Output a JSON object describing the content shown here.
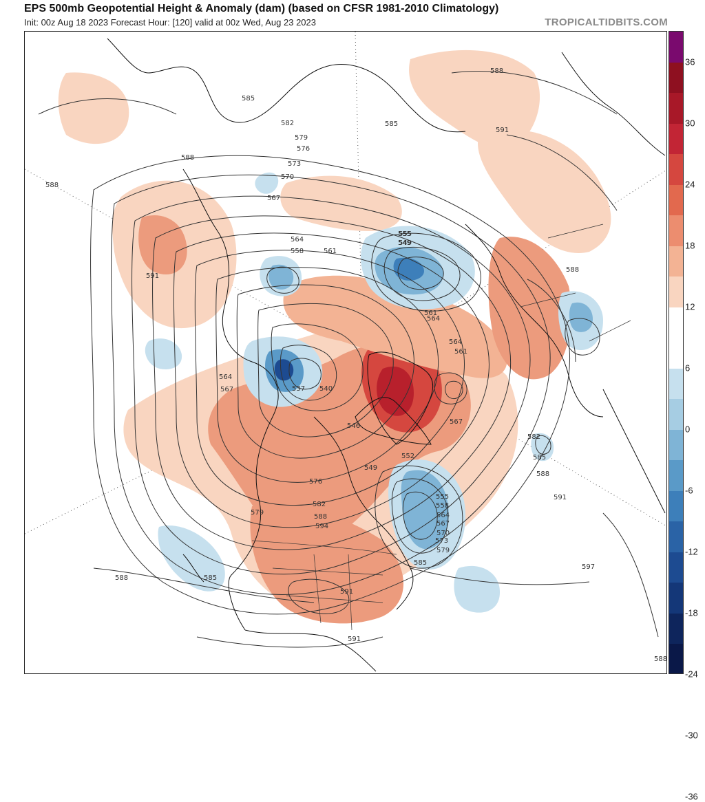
{
  "header": {
    "title": "EPS 500mb Geopotential Height & Anomaly (dam) (based on CFSR 1981-2010 Climatology)",
    "subtitle": "Init: 00z Aug 18 2023   Forecast Hour: [120]   valid at 00z Wed, Aug 23 2023",
    "brand": "TROPICALTIDBITS.COM"
  },
  "colorbar": {
    "ticks": [
      "36",
      "30",
      "24",
      "18",
      "12",
      "6",
      "0",
      "-6",
      "-12",
      "-18",
      "-24",
      "-30",
      "-36"
    ],
    "colors": [
      "#7a0a6e",
      "#8e1020",
      "#a81828",
      "#c22535",
      "#d5473f",
      "#e2694e",
      "#ec8d6f",
      "#f3b394",
      "#f9d5c0",
      "#ffffff",
      "#ffffff",
      "#c6e0ee",
      "#a6cde3",
      "#7fb4d6",
      "#5a9ac8",
      "#3d7fba",
      "#2a63a6",
      "#1d4b91",
      "#143778",
      "#0e255c",
      "#0a1848"
    ]
  },
  "map": {
    "colors": {
      "anom_pos_light": "#f9d5c0",
      "anom_pos_mid": "#ec9b7d",
      "anom_pos_strong": "#d5473f",
      "anom_pos_max": "#b8202c",
      "anom_neg_light": "#c6e0ee",
      "anom_neg_mid": "#7fb4d6",
      "anom_neg_strong": "#3d7fba",
      "anom_neg_max": "#1d4b91",
      "contour": "#333333",
      "coast": "#111111"
    },
    "contour_labels": [
      "588",
      "585",
      "588",
      "582",
      "579",
      "576",
      "573",
      "570",
      "567",
      "585",
      "588",
      "591",
      "564",
      "558",
      "561",
      "555",
      "549",
      "555",
      "549",
      "561",
      "564",
      "564",
      "561",
      "591",
      "588",
      "564",
      "567",
      "537",
      "540",
      "546",
      "552",
      "549",
      "567",
      "582",
      "585",
      "588",
      "591",
      "576",
      "579",
      "582",
      "588",
      "594",
      "555",
      "558",
      "564",
      "567",
      "570",
      "573",
      "579",
      "585",
      "591",
      "585",
      "588",
      "597",
      "591",
      "588"
    ]
  }
}
